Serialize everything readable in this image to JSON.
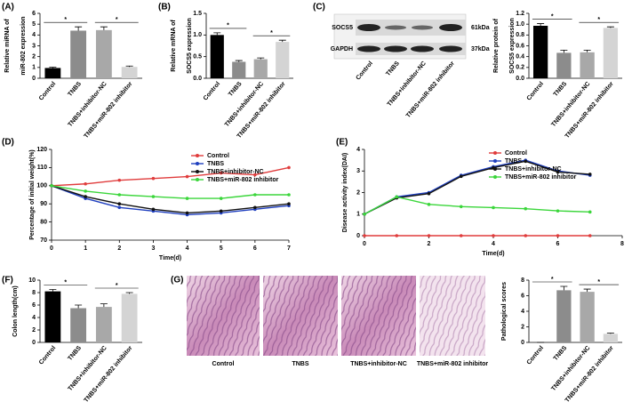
{
  "chart_data": [
    {
      "type": "bar",
      "panel": "(A)",
      "ylabel": [
        "Relative miRNA of",
        "miR-802 expression"
      ],
      "categories": [
        "Control",
        "TNBS",
        "TNBS+inhibitor-NC",
        "TNBS+miR-802 inhibitor"
      ],
      "values": [
        0.95,
        4.4,
        4.45,
        1.05
      ],
      "errors": [
        0.08,
        0.35,
        0.3,
        0.08
      ],
      "colors": [
        "#000000",
        "#8c8c8c",
        "#a8a8a8",
        "#d4d4d4"
      ],
      "ylim": [
        0,
        6
      ],
      "yticks": [
        0,
        1,
        2,
        3,
        4,
        5,
        6
      ],
      "significance": [
        "*",
        "*"
      ]
    },
    {
      "type": "bar",
      "panel": "(B)",
      "ylabel": [
        "Relative mRNA of",
        "SOCS5 expression"
      ],
      "categories": [
        "Control",
        "TNBS",
        "TNBS+inhibitor-NC",
        "TNBS+miR-802 inhibitor"
      ],
      "values": [
        1.0,
        0.38,
        0.44,
        0.84
      ],
      "errors": [
        0.05,
        0.03,
        0.03,
        0.04
      ],
      "colors": [
        "#000000",
        "#8c8c8c",
        "#a8a8a8",
        "#d4d4d4"
      ],
      "ylim": [
        0,
        1.5
      ],
      "yticks": [
        {
          "value": 0,
          "label": "0.0"
        },
        0.5,
        {
          "value": 1,
          "label": "1.0"
        },
        1.5
      ],
      "significance": [
        "*",
        "*"
      ]
    },
    {
      "type": "bar",
      "panel": "(C)",
      "ylabel": [
        "Relative protein of",
        "SOCS5 expression"
      ],
      "categories": [
        "Control",
        "TNBS",
        "TNBS+inhibitor-NC",
        "TNBS+miR-802 inhibitor"
      ],
      "values": [
        0.97,
        0.47,
        0.48,
        0.93
      ],
      "errors": [
        0.04,
        0.05,
        0.04,
        0.02
      ],
      "colors": [
        "#000000",
        "#8c8c8c",
        "#a8a8a8",
        "#d4d4d4"
      ],
      "ylim": [
        0,
        1.2
      ],
      "yticks": [
        {
          "value": 0,
          "label": "0.0"
        },
        0.2,
        0.4,
        0.6,
        0.8,
        {
          "value": 1,
          "label": "1.0"
        },
        1.2
      ],
      "significance": [
        "*",
        "*"
      ],
      "blot": {
        "bands": [
          "SOCS5",
          "GAPDH"
        ],
        "sizes": [
          "61kDa",
          "37kDa"
        ]
      }
    },
    {
      "type": "line",
      "panel": "(D)",
      "ylabel": "Percentage of initial weight(%)",
      "xlabel": "Time(d)",
      "x": [
        0,
        1,
        2,
        3,
        4,
        5,
        6,
        7
      ],
      "xlim": [
        0,
        7
      ],
      "xticks": [
        0,
        1,
        2,
        3,
        4,
        5,
        6,
        7
      ],
      "ylim": [
        70,
        120
      ],
      "yticks": [
        70,
        80,
        90,
        100,
        110,
        120
      ],
      "series": [
        {
          "name": "Control",
          "color": "#e03c3c",
          "values": [
            100,
            101,
            103,
            104,
            105,
            107,
            106,
            110
          ]
        },
        {
          "name": "TNBS",
          "color": "#1f3fbf",
          "values": [
            100,
            93,
            88,
            86,
            84,
            85,
            87,
            89
          ]
        },
        {
          "name": "TNBS+inhibitor-NC",
          "color": "#111111",
          "values": [
            100,
            94,
            90,
            87,
            85,
            86,
            88,
            90
          ]
        },
        {
          "name": "TNBS+miR-802 inhibitor",
          "color": "#3bd63b",
          "values": [
            100,
            97,
            95,
            94,
            93,
            93,
            95,
            95
          ]
        }
      ]
    },
    {
      "type": "line",
      "panel": "(E)",
      "ylabel": "Disease activity index(DAI)",
      "xlabel": "Time(d)",
      "x": [
        0,
        1,
        2,
        3,
        4,
        5,
        6,
        7
      ],
      "xlim": [
        0,
        8
      ],
      "xticks": [
        0,
        2,
        4,
        6,
        8
      ],
      "ylim": [
        0,
        4
      ],
      "yticks": [
        0,
        1,
        2,
        3,
        4
      ],
      "series": [
        {
          "name": "Control",
          "color": "#e03c3c",
          "values": [
            0,
            0,
            0,
            0,
            0,
            0,
            0,
            0
          ]
        },
        {
          "name": "TNBS",
          "color": "#1f3fbf",
          "values": [
            1,
            1.8,
            2,
            2.8,
            3.2,
            3.5,
            3,
            2.8
          ]
        },
        {
          "name": "TNBS+inhibitor-NC",
          "color": "#111111",
          "values": [
            1,
            1.75,
            1.95,
            2.75,
            3.15,
            3.45,
            2.95,
            2.85
          ]
        },
        {
          "name": "TNBS+miR-802 inhibitor",
          "color": "#3bd63b",
          "values": [
            1,
            1.8,
            1.45,
            1.35,
            1.3,
            1.25,
            1.15,
            1.1
          ]
        }
      ]
    },
    {
      "type": "bar",
      "panel": "(F)",
      "ylabel": [
        "Colon length(cm)"
      ],
      "categories": [
        "Control",
        "TNBS",
        "TNBS+inhibitor-NC",
        "TNBS+miR-802 inhibitor"
      ],
      "values": [
        8.2,
        5.5,
        5.7,
        7.8
      ],
      "errors": [
        0.3,
        0.5,
        0.5,
        0.2
      ],
      "colors": [
        "#000000",
        "#8c8c8c",
        "#a8a8a8",
        "#d4d4d4"
      ],
      "ylim": [
        0,
        10
      ],
      "yticks": [
        0,
        2,
        4,
        6,
        8,
        10
      ],
      "significance": [
        "*",
        "*"
      ]
    },
    {
      "type": "bar",
      "panel": "(G)",
      "ylabel": [
        "Pathological scores"
      ],
      "categories": [
        "Control",
        "TNBS",
        "TNBS+inhibitor-NC",
        "TNBS+miR-802 inhibitor"
      ],
      "values": [
        0,
        6.7,
        6.5,
        1.1
      ],
      "errors": [
        0,
        0.5,
        0.35,
        0.1
      ],
      "colors": [
        "#000000",
        "#8c8c8c",
        "#a8a8a8",
        "#d4d4d4"
      ],
      "ylim": [
        0,
        8
      ],
      "yticks": [
        0,
        2,
        4,
        6,
        8
      ],
      "significance": [
        "*",
        "*"
      ]
    }
  ]
}
